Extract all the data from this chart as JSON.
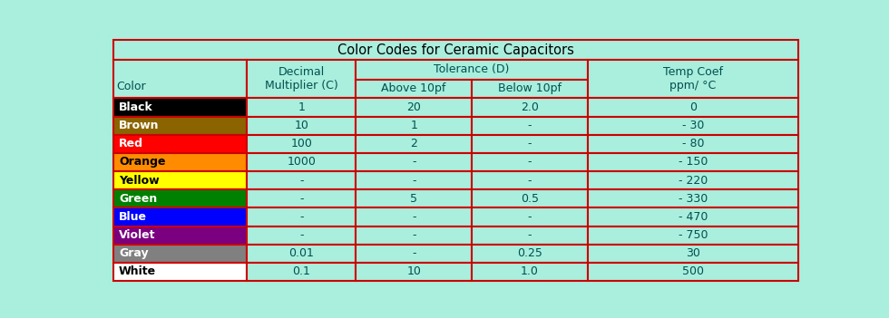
{
  "title": "Color Codes for Ceramic Capacitors",
  "background_color": "#aaeedd",
  "cell_bg": "#aaeedd",
  "border_color": "#cc0000",
  "figsize": [
    9.8,
    3.51
  ],
  "dpi": 100,
  "colors": [
    "Black",
    "Brown",
    "Red",
    "Orange",
    "Yellow",
    "Green",
    "Blue",
    "Violet",
    "Gray",
    "White"
  ],
  "color_swatches": [
    "#000000",
    "#8B6400",
    "#FF0000",
    "#FF8C00",
    "#FFFF00",
    "#008000",
    "#0000FF",
    "#7B0080",
    "#808080",
    "#FFFFFF"
  ],
  "text_colors": [
    "#FFFFFF",
    "#FFFFFF",
    "#FFFFFF",
    "#000000",
    "#000000",
    "#FFFFFF",
    "#FFFFFF",
    "#FFFFFF",
    "#FFFFFF",
    "#000000"
  ],
  "decimal_mult": [
    "1",
    "10",
    "100",
    "1000",
    "-",
    "-",
    "-",
    "-",
    "0.01",
    "0.1"
  ],
  "above_10pf": [
    "20",
    "1",
    "2",
    "-",
    "-",
    "5",
    "-",
    "-",
    "-",
    "10"
  ],
  "below_10pf": [
    "2.0",
    "-",
    "-",
    "-",
    "-",
    "0.5",
    "-",
    "-",
    "0.25",
    "1.0"
  ],
  "temp_coef": [
    "0",
    "- 30",
    "- 80",
    "- 150",
    "- 220",
    "- 330",
    "- 470",
    "- 750",
    "30",
    "500"
  ],
  "font_color": "#005050"
}
